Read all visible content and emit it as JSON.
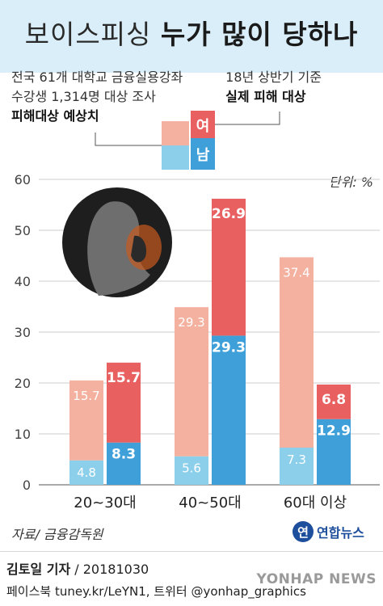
{
  "title_light": "보이스피싱",
  "title_bold": "누가 많이 당하나",
  "notes": {
    "left_line1": "전국 61개 대학교 금융실용강좌",
    "left_line2": "수강생 1,314명 대상 조사",
    "left_bold": "피해대상 예상치",
    "right_line1": "18년 상반기 기준",
    "right_bold": "실제 피해 대상"
  },
  "legend": {
    "female_label": "여",
    "male_label": "남"
  },
  "unit": "단위: %",
  "source": "자료/ 금융감독원",
  "logo_text": "연합뉴스",
  "author_name": "김토일 기자",
  "author_date": " / 20181030",
  "sns": "페이스북 tuney.kr/LeYN1, 트위터 @yonhap_graphics",
  "watermark": "YONHAP NEWS",
  "colors": {
    "expected_female": "#f4b1a0",
    "expected_male": "#8ccfeb",
    "actual_female": "#e86060",
    "actual_male": "#3e9fd9",
    "axis_text": "#444444",
    "grid": "#cccccc"
  },
  "icon": "phone-caller-silhouette-icon",
  "chart_data": {
    "type": "bar",
    "stacked": true,
    "categories": [
      "20~30대",
      "40~50대",
      "60대 이상"
    ],
    "ylim": [
      0,
      60
    ],
    "yticks": [
      0,
      10,
      20,
      30,
      40,
      50,
      60
    ],
    "grid": true,
    "legend_position": "top-center",
    "series": [
      {
        "group": "피해대상 예상치",
        "sex": "남",
        "values": [
          4.8,
          5.6,
          7.3
        ]
      },
      {
        "group": "피해대상 예상치",
        "sex": "여",
        "values": [
          15.7,
          29.3,
          37.4
        ]
      },
      {
        "group": "실제 피해 대상",
        "sex": "남",
        "values": [
          8.3,
          29.3,
          12.9
        ]
      },
      {
        "group": "실제 피해 대상",
        "sex": "여",
        "values": [
          15.7,
          26.9,
          6.8
        ]
      }
    ]
  }
}
